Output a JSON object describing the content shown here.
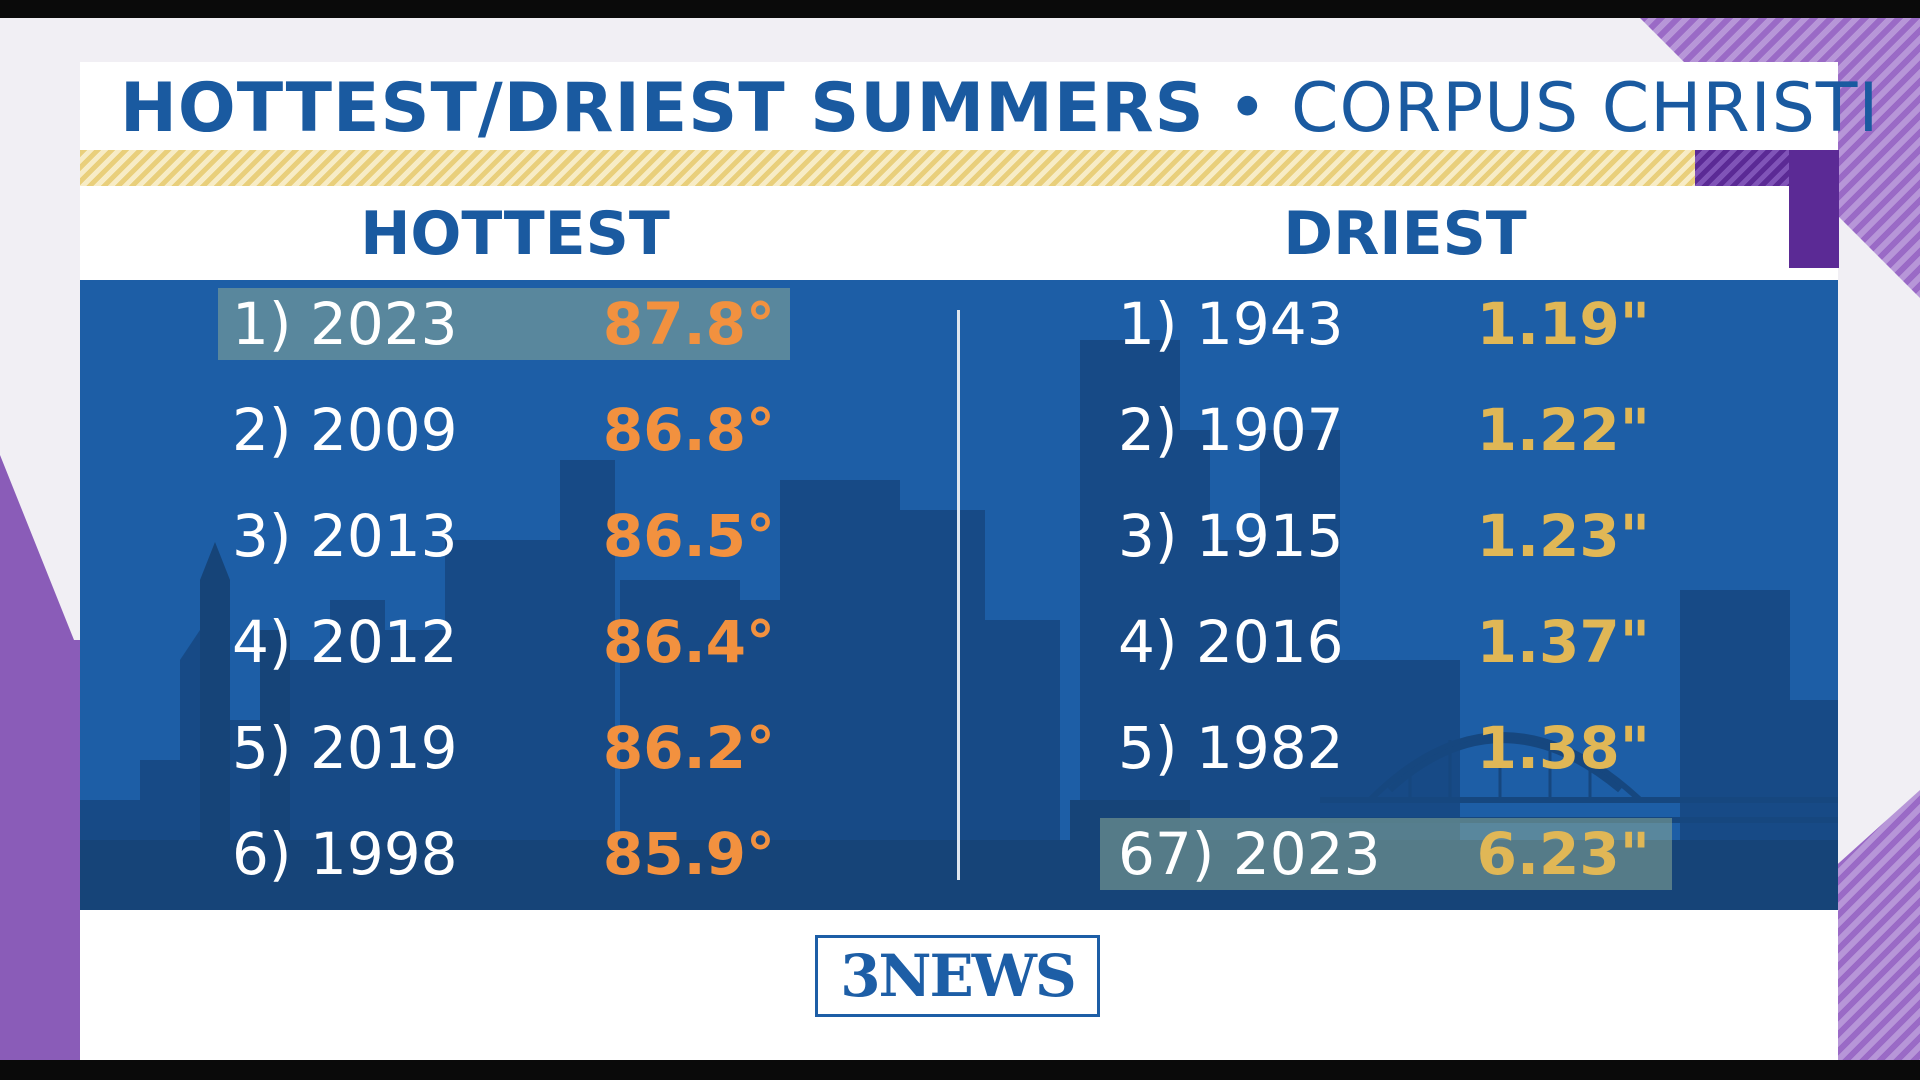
{
  "title": {
    "bold": "HOTTEST/DRIEST SUMMERS",
    "separator": "•",
    "light": "CORPUS CHRISTI"
  },
  "hottest": {
    "heading": "HOTTEST",
    "rows": [
      {
        "rank": "1) 2023",
        "value": "87.8°",
        "highlighted": true
      },
      {
        "rank": "2) 2009",
        "value": "86.8°"
      },
      {
        "rank": "3) 2013",
        "value": "86.5°"
      },
      {
        "rank": "4) 2012",
        "value": "86.4°"
      },
      {
        "rank": "5) 2019",
        "value": "86.2°"
      },
      {
        "rank": "6) 1998",
        "value": "85.9°"
      }
    ]
  },
  "driest": {
    "heading": "DRIEST",
    "rows": [
      {
        "rank": "1) 1943",
        "value": "1.19\""
      },
      {
        "rank": "2) 1907",
        "value": "1.22\""
      },
      {
        "rank": "3) 1915",
        "value": "1.23\""
      },
      {
        "rank": "4) 2016",
        "value": "1.37\""
      },
      {
        "rank": "5) 1982",
        "value": "1.38\""
      },
      {
        "rank": "67) 2023",
        "value": "6.23\"",
        "highlighted": true
      }
    ]
  },
  "logo": {
    "text": "3NEWS"
  },
  "colors": {
    "accent_blue": "#1a5aa0",
    "panel_blue": "#1d5ea6",
    "hot_orange": "#f2913f",
    "dry_gold": "#e0b756",
    "purple": "#8a5cb8"
  }
}
